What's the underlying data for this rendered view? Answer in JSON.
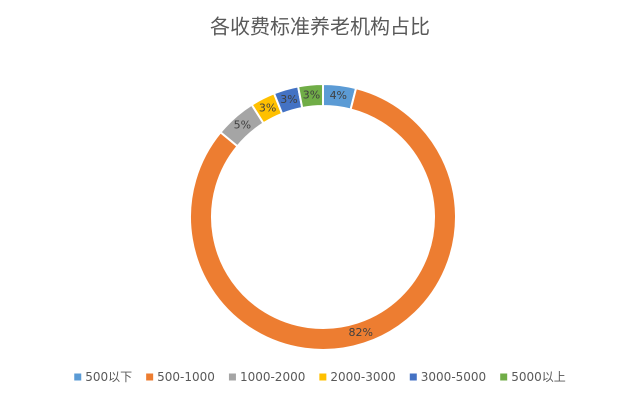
{
  "chart_data": {
    "type": "donut",
    "title": "各收费标准养老机构占比",
    "categories": [
      "500以下",
      "500-1000",
      "1000-2000",
      "2000-3000",
      "3000-5000",
      "5000以上"
    ],
    "values": [
      4,
      82,
      5,
      3,
      3,
      3
    ],
    "value_labels": [
      "4%",
      "82%",
      "5%",
      "3%",
      "3%",
      "3%"
    ],
    "colors": [
      "#5b9bd5",
      "#ed7d31",
      "#a5a5a5",
      "#ffc000",
      "#4472c4",
      "#70ad47"
    ],
    "legend": "bottom"
  }
}
